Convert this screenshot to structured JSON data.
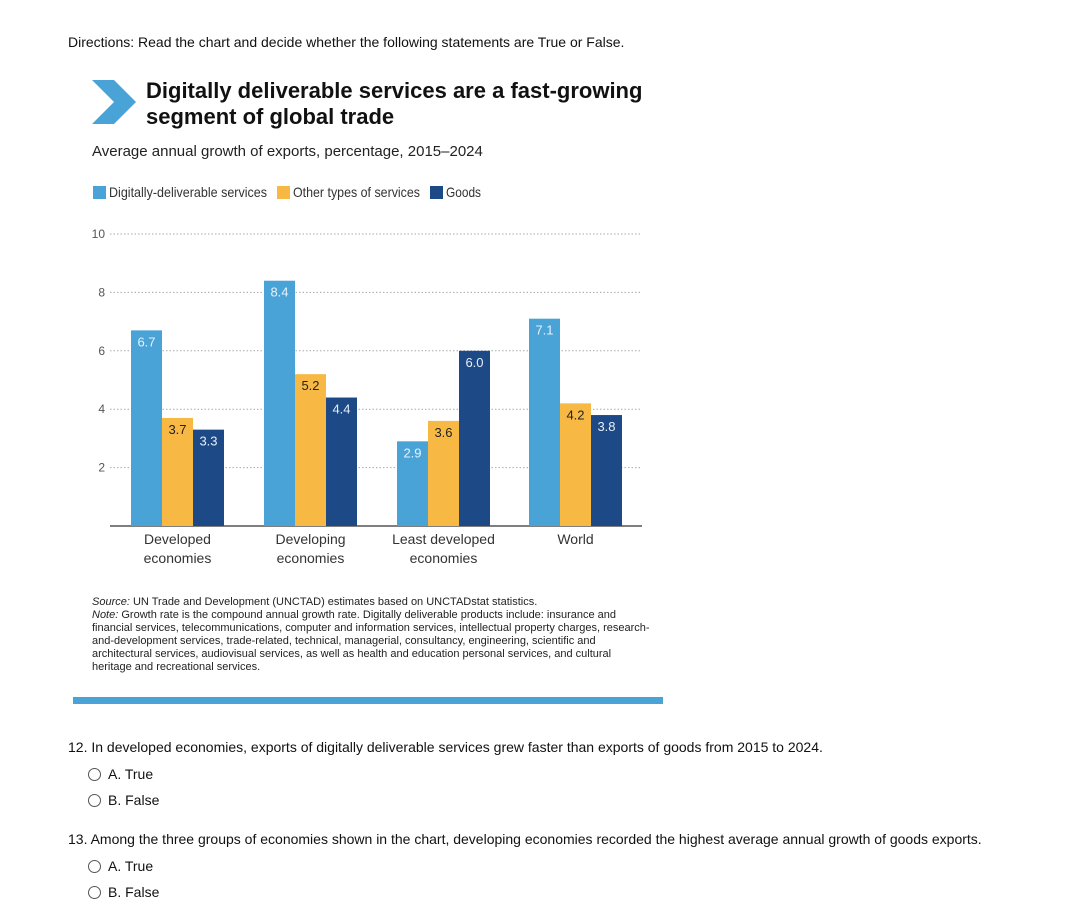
{
  "directions": "Directions: Read the chart and decide whether the following statements are True or False.",
  "chart_header": {
    "title_line1": "Digitally deliverable services are a fast-growing",
    "title_line2": "segment of global trade",
    "subtitle": "Average annual growth of exports, percentage, 2015–2024"
  },
  "chart_data": {
    "type": "bar",
    "categories": [
      [
        "Developed",
        "economies"
      ],
      [
        "Developing",
        "economies"
      ],
      [
        "Least developed",
        "economies"
      ],
      [
        "World"
      ]
    ],
    "series": [
      {
        "name": "Digitally-deliverable services",
        "color": "#4aa3d6",
        "values": [
          6.7,
          8.4,
          2.9,
          7.1
        ],
        "labels": [
          "6.7",
          "8.4",
          "2.9",
          "7.1"
        ]
      },
      {
        "name": "Other types of services",
        "color": "#f7b944",
        "values": [
          3.7,
          5.2,
          3.6,
          4.2
        ],
        "labels": [
          "3.7",
          "5.2",
          "3.6",
          "4.2"
        ]
      },
      {
        "name": "Goods",
        "color": "#1d4a86",
        "values": [
          3.3,
          4.4,
          6.0,
          3.8
        ],
        "labels": [
          "3.3",
          "4.4",
          "6.0",
          "3.8"
        ]
      }
    ],
    "y_ticks": [
      "2",
      "4",
      "6",
      "8",
      "10"
    ],
    "ylim": [
      0,
      10
    ],
    "grid": true,
    "legend_position": "top-left"
  },
  "source": {
    "source_label": "Source:",
    "source_text": " UN Trade and Development (UNCTAD) estimates based on UNCTADstat statistics.",
    "note_label": "Note:",
    "note_text": " Growth rate is the compound annual growth rate. Digitally deliverable products include: insurance and financial services, telecommunications, computer and information services, intellectual property charges, research-and-development services, trade-related, technical, managerial, consultancy, engineering, scientific and architectural services, audiovisual services, as well as health and education personal services, and cultural heritage and recreational services."
  },
  "questions": [
    {
      "text": "12. In developed economies, exports of digitally deliverable services grew faster than exports of goods from 2015 to 2024.",
      "options": [
        "A. True",
        "B. False"
      ]
    },
    {
      "text": "13. Among the three groups of economies shown in the chart, developing economies recorded the highest average annual growth of goods exports.",
      "options": [
        "A. True",
        "B. False"
      ]
    }
  ]
}
